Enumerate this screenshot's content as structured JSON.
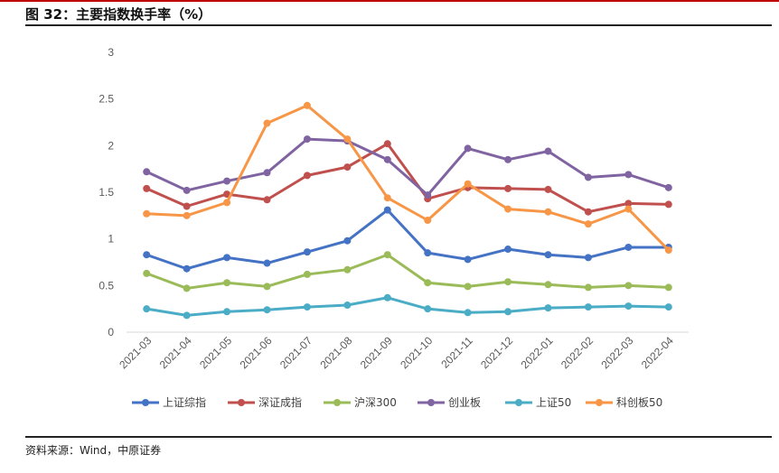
{
  "figure": {
    "title": "图 32：主要指数换手率（%）",
    "source": "资料来源：Wind，中原证券"
  },
  "chart_data": {
    "type": "line",
    "categories": [
      "2021-03",
      "2021-04",
      "2021-05",
      "2021-06",
      "2021-07",
      "2021-08",
      "2021-09",
      "2021-10",
      "2021-11",
      "2021-12",
      "2022-01",
      "2022-02",
      "2022-03",
      "2022-04"
    ],
    "ylim": [
      0,
      3
    ],
    "yticks": [
      "0",
      "0.5",
      "1",
      "1.5",
      "2",
      "2.5",
      "3"
    ],
    "grid": false,
    "legend_position": "bottom",
    "series": [
      {
        "name": "上证综指",
        "color": "#4472c4",
        "values": [
          0.83,
          0.68,
          0.8,
          0.74,
          0.86,
          0.98,
          1.31,
          0.85,
          0.78,
          0.89,
          0.83,
          0.8,
          0.91,
          0.91
        ]
      },
      {
        "name": "深证成指",
        "color": "#c0504d",
        "values": [
          1.54,
          1.35,
          1.48,
          1.42,
          1.68,
          1.77,
          2.02,
          1.43,
          1.55,
          1.54,
          1.53,
          1.29,
          1.38,
          1.37
        ]
      },
      {
        "name": "沪深300",
        "color": "#9bbb59",
        "values": [
          0.63,
          0.47,
          0.53,
          0.49,
          0.62,
          0.67,
          0.83,
          0.53,
          0.49,
          0.54,
          0.51,
          0.48,
          0.5,
          0.48
        ]
      },
      {
        "name": "创业板",
        "color": "#8064a2",
        "values": [
          1.72,
          1.52,
          1.62,
          1.71,
          2.07,
          2.05,
          1.85,
          1.47,
          1.97,
          1.85,
          1.94,
          1.66,
          1.69,
          1.55
        ]
      },
      {
        "name": "上证50",
        "color": "#4bacc6",
        "values": [
          0.25,
          0.18,
          0.22,
          0.24,
          0.27,
          0.29,
          0.37,
          0.25,
          0.21,
          0.22,
          0.26,
          0.27,
          0.28,
          0.27
        ]
      },
      {
        "name": "科创板50",
        "color": "#f79646",
        "values": [
          1.27,
          1.25,
          1.39,
          2.24,
          2.43,
          2.07,
          1.44,
          1.2,
          1.59,
          1.32,
          1.29,
          1.16,
          1.32,
          0.88
        ]
      }
    ]
  }
}
